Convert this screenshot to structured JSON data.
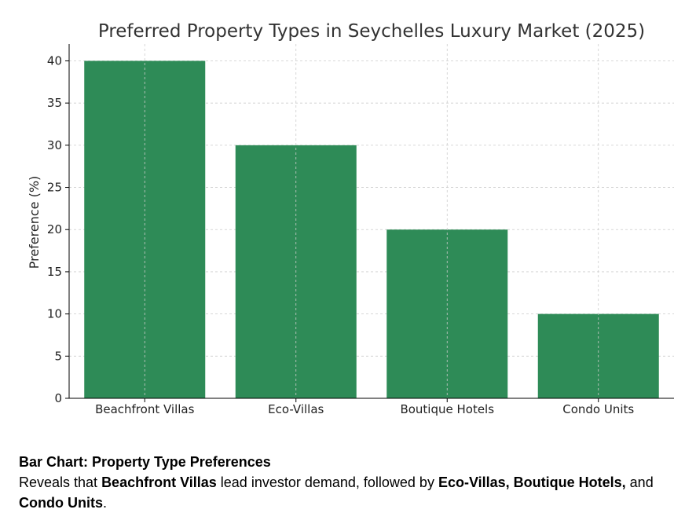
{
  "chart_data": {
    "type": "bar",
    "title": "Preferred Property Types in Seychelles Luxury Market (2025)",
    "xlabel": "",
    "ylabel": "Preference (%)",
    "categories": [
      "Beachfront Villas",
      "Eco-Villas",
      "Boutique Hotels",
      "Condo Units"
    ],
    "values": [
      40,
      30,
      20,
      10
    ],
    "ylim": [
      0,
      42
    ],
    "yticks": [
      0,
      5,
      10,
      15,
      20,
      25,
      30,
      35,
      40
    ],
    "bar_color": "#2e8b57",
    "grid": true
  },
  "caption": {
    "heading": "Bar Chart: Property Type Preferences",
    "text_1": "Reveals that ",
    "bold_1": "Beachfront Villas",
    "text_2": " lead investor demand, followed by ",
    "bold_2": "Eco-Villas, Boutique Hotels,",
    "text_3": " and ",
    "bold_3": "Condo Units",
    "text_4": "."
  }
}
